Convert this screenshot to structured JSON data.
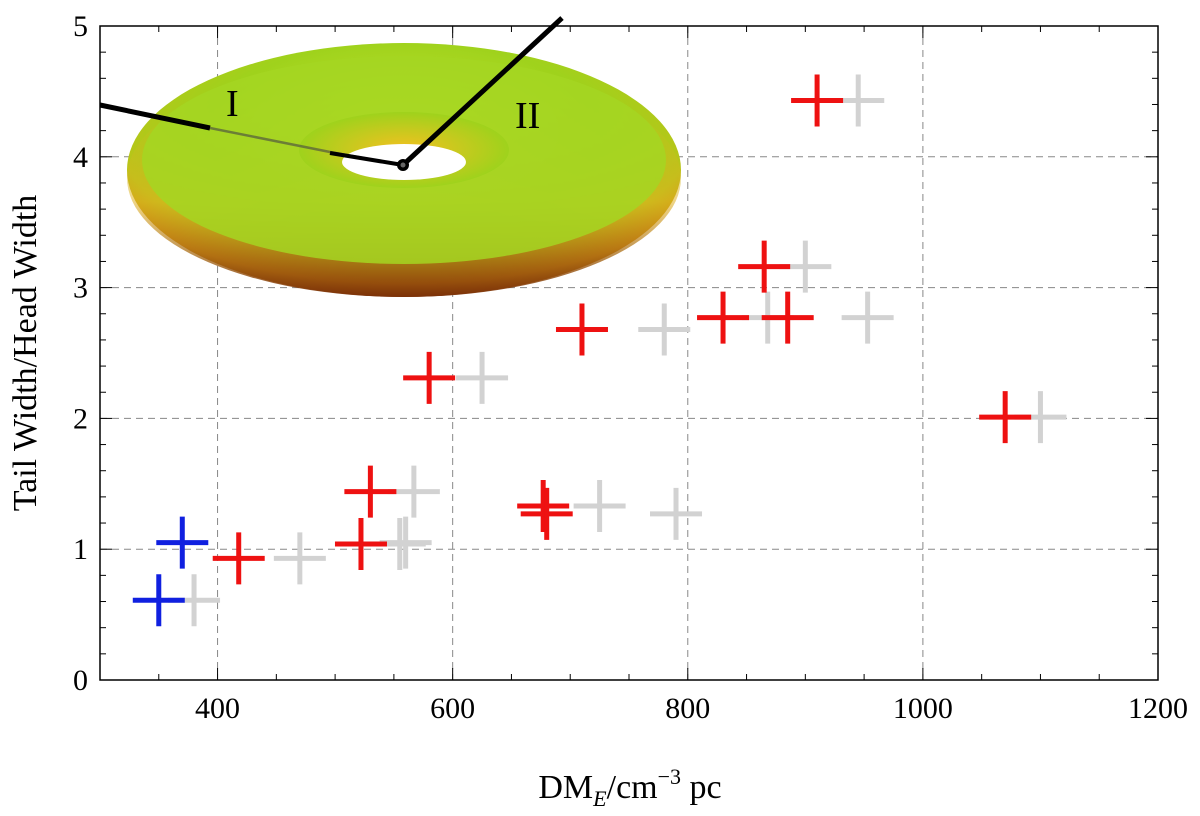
{
  "chart_data": {
    "type": "scatter",
    "title": "",
    "xlabel": {
      "main": "DM",
      "sub": "E",
      "rest": "/cm",
      "sup": "−3",
      "unit": " pc"
    },
    "ylabel": "Tail Width/Head Width",
    "xlim": [
      300,
      1200
    ],
    "ylim": [
      0,
      5
    ],
    "xticks": [
      400,
      600,
      800,
      1000,
      1200
    ],
    "yticks": [
      0,
      1,
      2,
      3,
      4,
      5
    ],
    "grid": true,
    "colors": {
      "red": "#ee1111",
      "gray": "#d2d2d2",
      "blue": "#1020e0"
    },
    "series": [
      {
        "name": "gray",
        "color": "#d2d2d2",
        "points": [
          {
            "x": 945,
            "y": 4.43
          },
          {
            "x": 900,
            "y": 3.16
          },
          {
            "x": 780,
            "y": 2.68
          },
          {
            "x": 868,
            "y": 2.77
          },
          {
            "x": 953,
            "y": 2.77
          },
          {
            "x": 625,
            "y": 2.31
          },
          {
            "x": 1100,
            "y": 2.01
          },
          {
            "x": 567,
            "y": 1.44
          },
          {
            "x": 725,
            "y": 1.33
          },
          {
            "x": 790,
            "y": 1.27
          },
          {
            "x": 560,
            "y": 1.05
          },
          {
            "x": 555,
            "y": 1.04
          },
          {
            "x": 470,
            "y": 0.93
          },
          {
            "x": 380,
            "y": 0.61
          }
        ]
      },
      {
        "name": "red",
        "color": "#ee1111",
        "points": [
          {
            "x": 910,
            "y": 4.43
          },
          {
            "x": 865,
            "y": 3.16
          },
          {
            "x": 710,
            "y": 2.68
          },
          {
            "x": 830,
            "y": 2.77
          },
          {
            "x": 885,
            "y": 2.77
          },
          {
            "x": 580,
            "y": 2.31
          },
          {
            "x": 1070,
            "y": 2.01
          },
          {
            "x": 530,
            "y": 1.44
          },
          {
            "x": 677,
            "y": 1.33
          },
          {
            "x": 680,
            "y": 1.27
          },
          {
            "x": 522,
            "y": 1.04
          },
          {
            "x": 418,
            "y": 0.93
          }
        ]
      },
      {
        "name": "blue",
        "color": "#1020e0",
        "points": [
          {
            "x": 370,
            "y": 1.05
          },
          {
            "x": 350,
            "y": 0.61
          }
        ]
      }
    ],
    "annotations": [
      "I",
      "II"
    ]
  }
}
